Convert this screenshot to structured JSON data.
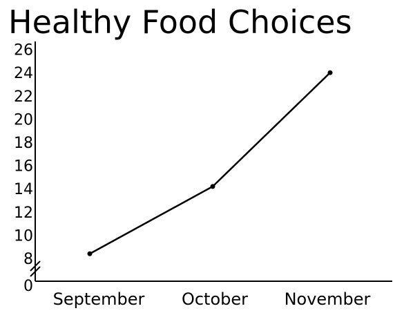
{
  "chart_data": {
    "type": "line",
    "title": "Healthy Food Choices",
    "xlabel": "",
    "ylabel": "",
    "categories": [
      "September",
      "October",
      "November"
    ],
    "values": [
      8.4,
      14.2,
      24
    ],
    "y_ticks": [
      0,
      8,
      10,
      12,
      14,
      16,
      18,
      20,
      22,
      24,
      26
    ],
    "ylim": [
      0,
      26
    ],
    "axis_break": "between 0 and 8",
    "grid": false,
    "legend": "none",
    "line_color": "#000000"
  }
}
